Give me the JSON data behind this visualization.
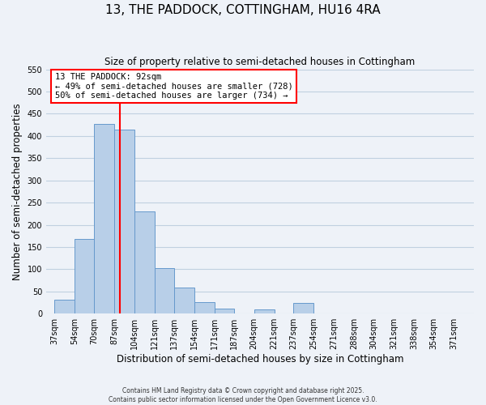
{
  "title": "13, THE PADDOCK, COTTINGHAM, HU16 4RA",
  "subtitle": "Size of property relative to semi-detached houses in Cottingham",
  "xlabel": "Distribution of semi-detached houses by size in Cottingham",
  "ylabel": "Number of semi-detached properties",
  "bar_lefts": [
    37,
    54,
    70,
    87,
    104,
    121,
    137,
    154,
    171,
    187,
    204,
    221,
    237,
    254,
    271,
    288,
    304,
    321,
    338,
    354
  ],
  "bar_widths": [
    17,
    16,
    17,
    17,
    17,
    16,
    17,
    17,
    16,
    17,
    17,
    16,
    17,
    17,
    17,
    16,
    17,
    17,
    16,
    17
  ],
  "bar_heights": [
    32,
    168,
    427,
    415,
    231,
    103,
    58,
    26,
    11,
    0,
    10,
    0,
    24,
    0,
    0,
    0,
    0,
    0,
    0,
    0
  ],
  "bar_color": "#b8cfe8",
  "bar_edgecolor": "#6699cc",
  "grid_color": "#c0d0e0",
  "bg_color": "#eef2f8",
  "property_line_x": 92,
  "annotation_line1": "13 THE PADDOCK: 92sqm",
  "annotation_line2": "← 49% of semi-detached houses are smaller (728)",
  "annotation_line3": "50% of semi-detached houses are larger (734) →",
  "annotation_box_color": "white",
  "annotation_box_edgecolor": "red",
  "vline_color": "red",
  "ylim": [
    0,
    550
  ],
  "yticks": [
    0,
    50,
    100,
    150,
    200,
    250,
    300,
    350,
    400,
    450,
    500,
    550
  ],
  "xtick_positions": [
    37,
    54,
    70,
    87,
    104,
    121,
    137,
    154,
    171,
    187,
    204,
    221,
    237,
    254,
    271,
    288,
    304,
    321,
    338,
    354,
    371
  ],
  "xtick_labels": [
    "37sqm",
    "54sqm",
    "70sqm",
    "87sqm",
    "104sqm",
    "121sqm",
    "137sqm",
    "154sqm",
    "171sqm",
    "187sqm",
    "204sqm",
    "221sqm",
    "237sqm",
    "254sqm",
    "271sqm",
    "288sqm",
    "304sqm",
    "321sqm",
    "338sqm",
    "354sqm",
    "371sqm"
  ],
  "xlim": [
    30,
    388
  ],
  "footer_line1": "Contains HM Land Registry data © Crown copyright and database right 2025.",
  "footer_line2": "Contains public sector information licensed under the Open Government Licence v3.0."
}
